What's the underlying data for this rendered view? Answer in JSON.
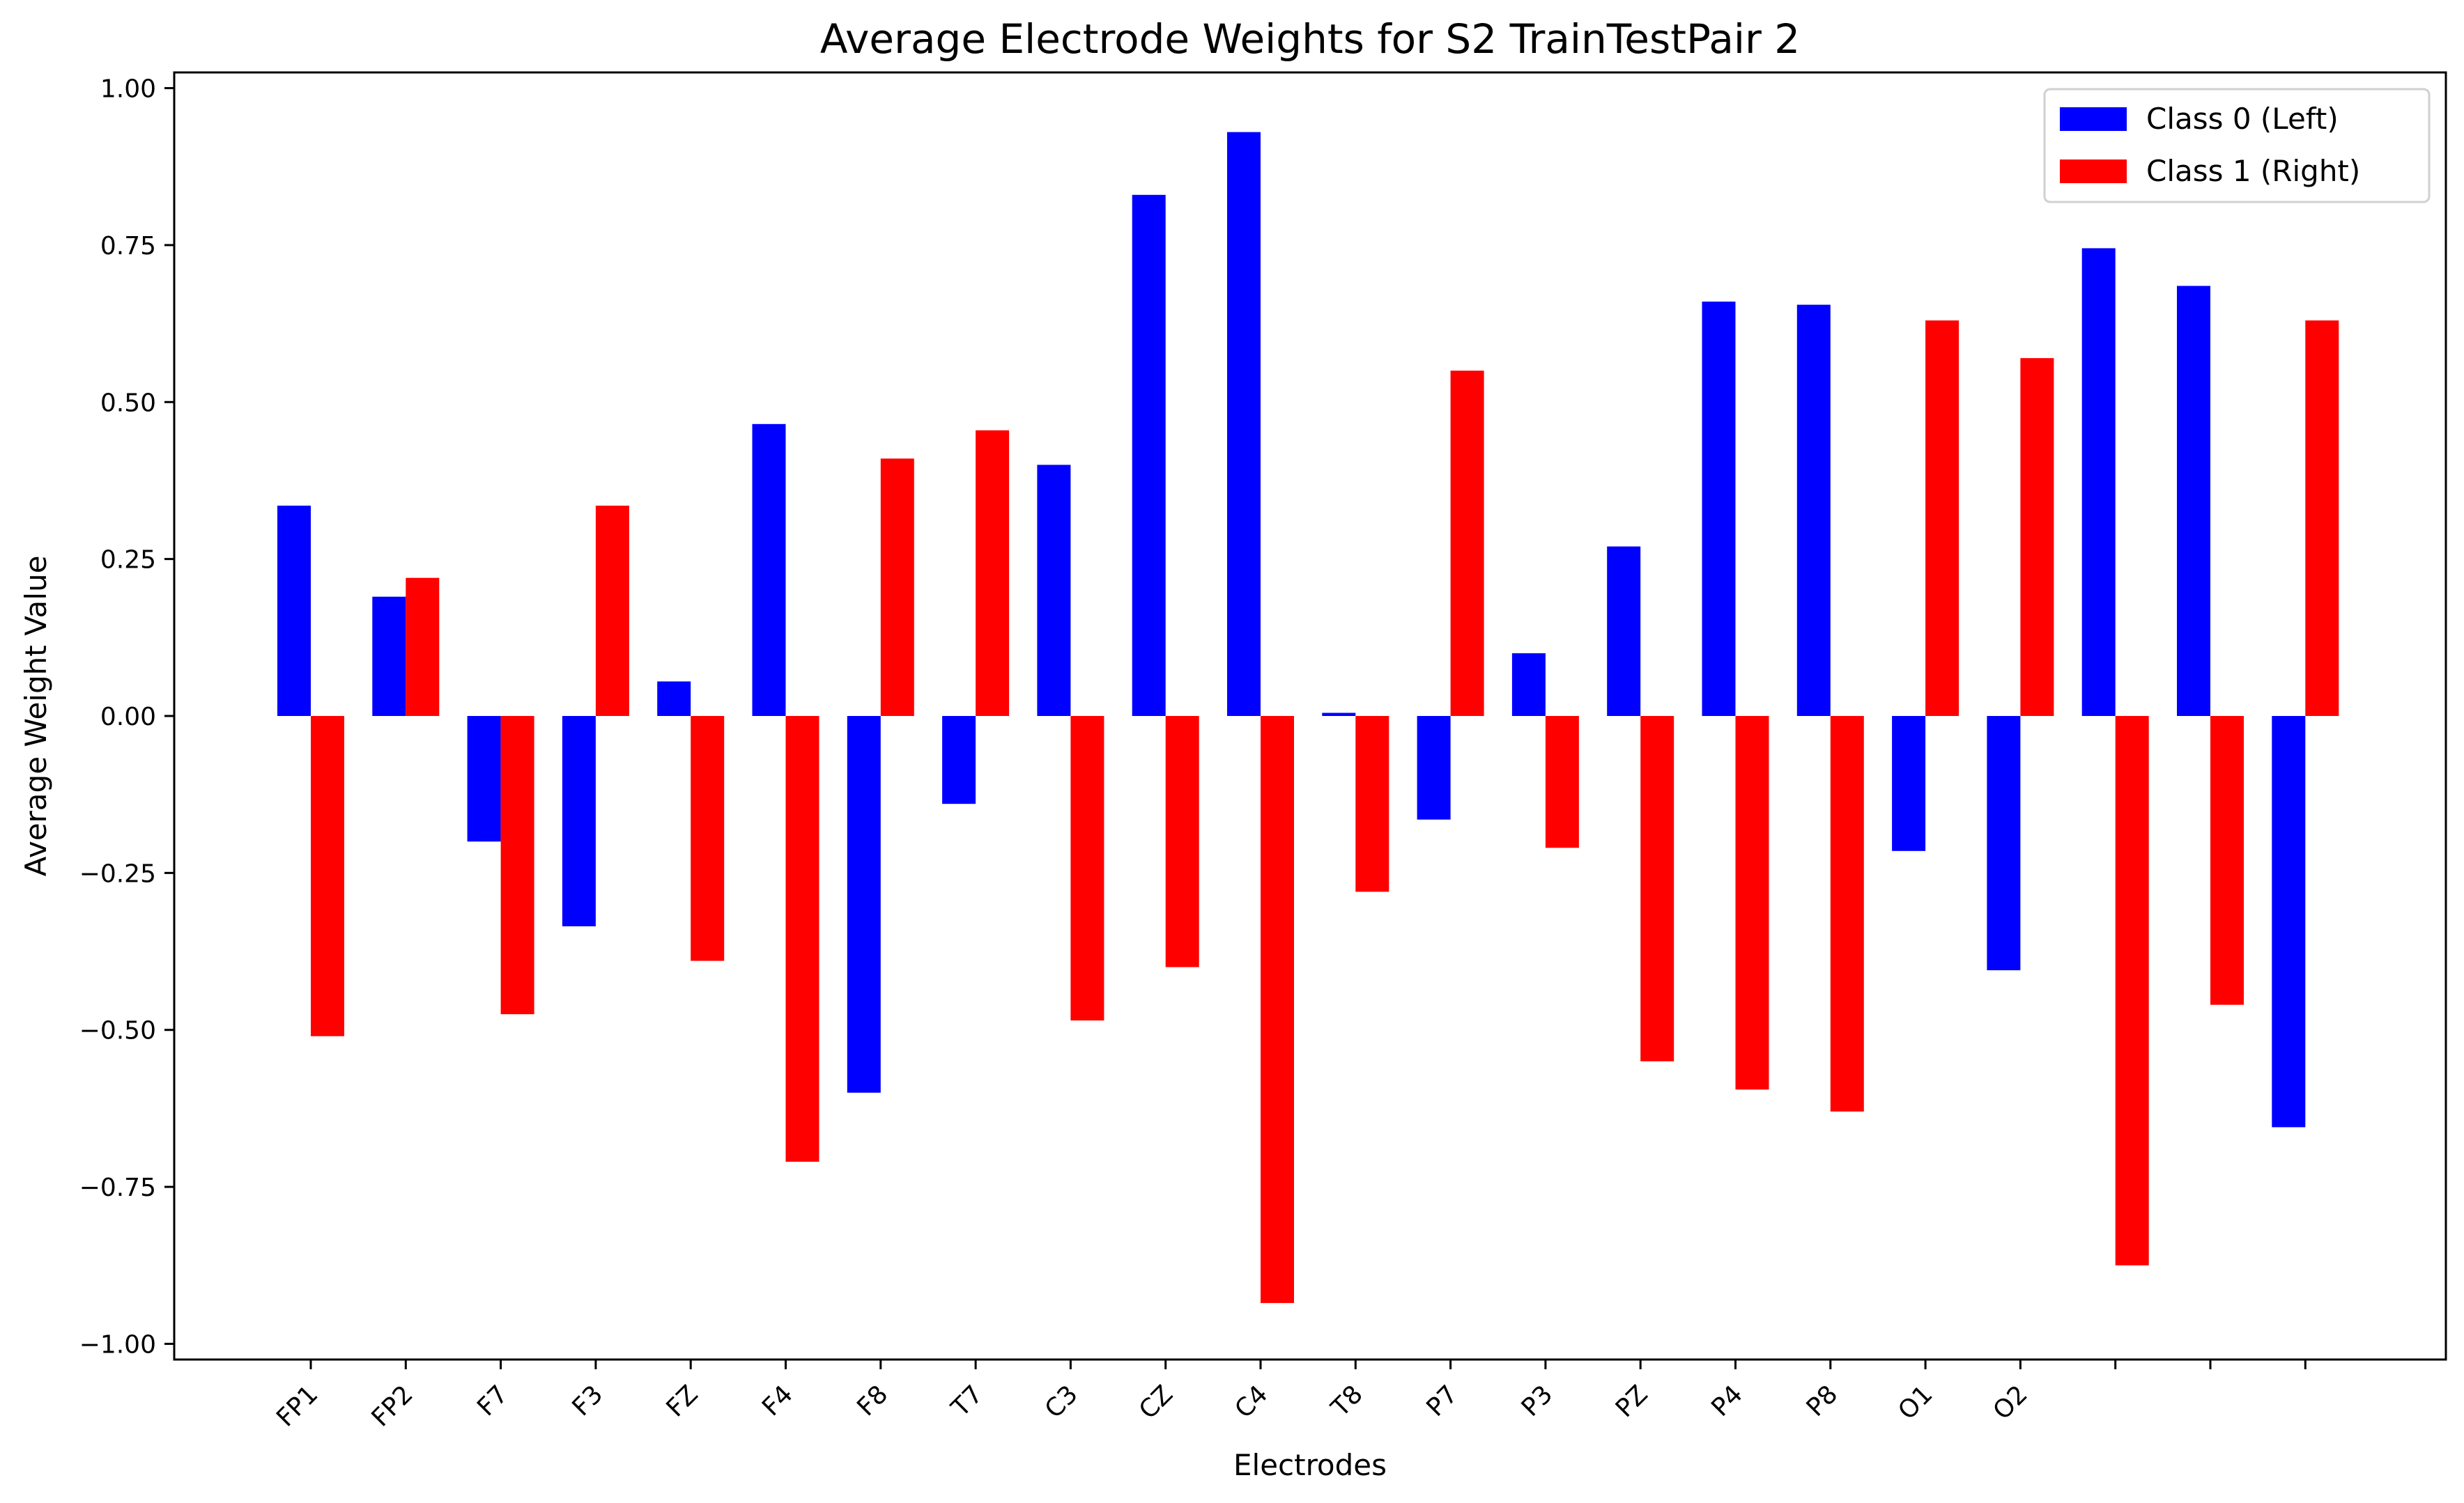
{
  "chart_data": {
    "type": "bar",
    "title": "Average Electrode Weights for S2 TrainTestPair 2",
    "xlabel": "Electrodes",
    "ylabel": "Average Weight Value",
    "ylim": [
      -1.025,
      1.025
    ],
    "yticks": [
      -1.0,
      -0.75,
      -0.5,
      -0.25,
      0.0,
      0.25,
      0.5,
      0.75,
      1.0
    ],
    "ytick_labels": [
      "−1.00",
      "−0.75",
      "−0.50",
      "−0.25",
      "0.00",
      "0.25",
      "0.50",
      "0.75",
      "1.00"
    ],
    "categories": [
      "FP1",
      "FP2",
      "F7",
      "F3",
      "FZ",
      "F4",
      "F8",
      "T7",
      "C3",
      "CZ",
      "C4",
      "T8",
      "P7",
      "P3",
      "PZ",
      "P4",
      "P8",
      "O1",
      "O2",
      "",
      "",
      ""
    ],
    "series": [
      {
        "name": "Class 0 (Left)",
        "color": "#0000ff",
        "values": [
          0.335,
          0.19,
          -0.2,
          -0.335,
          0.055,
          0.465,
          -0.6,
          -0.14,
          0.4,
          0.83,
          0.93,
          0.005,
          -0.165,
          0.1,
          0.27,
          0.66,
          0.655,
          -0.215,
          -0.405,
          0.745,
          0.685,
          -0.655
        ]
      },
      {
        "name": "Class 1 (Right)",
        "color": "#ff0000",
        "values": [
          -0.51,
          0.22,
          -0.475,
          0.335,
          -0.39,
          -0.71,
          0.41,
          0.455,
          -0.485,
          -0.4,
          -0.935,
          -0.28,
          0.55,
          -0.21,
          -0.55,
          -0.595,
          -0.63,
          0.63,
          0.57,
          -0.875,
          -0.46,
          0.63
        ]
      }
    ],
    "grid": false,
    "legend_position": "top-right"
  }
}
